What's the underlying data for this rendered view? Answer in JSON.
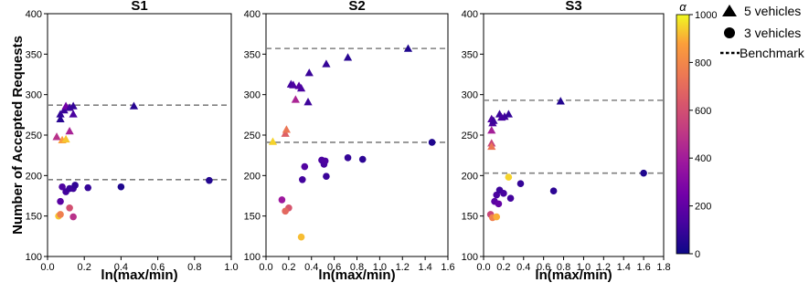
{
  "figure": {
    "ylabel": "Number of Accepted Requests",
    "legend": {
      "items": [
        {
          "marker": "triangle",
          "label": "5 vehicles"
        },
        {
          "marker": "circle",
          "label": "3 vehicles"
        },
        {
          "marker": "dashed-line",
          "label": "Benchmark"
        }
      ],
      "placement": "right"
    },
    "colorbar": {
      "label": "α",
      "colormap": "plasma",
      "min": 0,
      "max": 1000,
      "ticks": [
        "0",
        "200",
        "400",
        "600",
        "800",
        "1000"
      ]
    },
    "colors": {
      "benchmark_line": "#808080",
      "plasma_low": "#0d0887",
      "plasma_mid": "#cc4778",
      "plasma_high": "#f0f921"
    }
  },
  "chart_data": [
    {
      "type": "scatter",
      "title": "S1",
      "xlabel": "ln(max/min)",
      "xlim": [
        0.0,
        1.0
      ],
      "ylim": [
        100,
        400
      ],
      "xticks": [
        "0.0",
        "0.2",
        "0.4",
        "0.6",
        "0.8",
        "1.0"
      ],
      "yticks": [
        "100",
        "150",
        "200",
        "250",
        "300",
        "350",
        "400"
      ],
      "grid": false,
      "benchmarks": [
        287,
        195
      ],
      "series": [
        {
          "name": "5 vehicles",
          "marker": "triangle",
          "points": [
            {
              "x": 0.07,
              "y": 270,
              "alpha": 60
            },
            {
              "x": 0.07,
              "y": 276,
              "alpha": 80
            },
            {
              "x": 0.09,
              "y": 281,
              "alpha": 100
            },
            {
              "x": 0.1,
              "y": 286,
              "alpha": 250
            },
            {
              "x": 0.12,
              "y": 284,
              "alpha": 120
            },
            {
              "x": 0.14,
              "y": 286,
              "alpha": 90
            },
            {
              "x": 0.14,
              "y": 276,
              "alpha": 140
            },
            {
              "x": 0.47,
              "y": 286,
              "alpha": 60
            },
            {
              "x": 0.05,
              "y": 248,
              "alpha": 480
            },
            {
              "x": 0.12,
              "y": 255,
              "alpha": 420
            },
            {
              "x": 0.08,
              "y": 244,
              "alpha": 870
            },
            {
              "x": 0.1,
              "y": 245,
              "alpha": 930
            }
          ]
        },
        {
          "name": "3 vehicles",
          "marker": "circle",
          "points": [
            {
              "x": 0.07,
              "y": 168,
              "alpha": 180
            },
            {
              "x": 0.08,
              "y": 186,
              "alpha": 150
            },
            {
              "x": 0.1,
              "y": 180,
              "alpha": 120
            },
            {
              "x": 0.12,
              "y": 184,
              "alpha": 100
            },
            {
              "x": 0.14,
              "y": 184,
              "alpha": 110
            },
            {
              "x": 0.15,
              "y": 188,
              "alpha": 80
            },
            {
              "x": 0.22,
              "y": 185,
              "alpha": 90
            },
            {
              "x": 0.4,
              "y": 186,
              "alpha": 40
            },
            {
              "x": 0.88,
              "y": 194,
              "alpha": 50
            },
            {
              "x": 0.12,
              "y": 160,
              "alpha": 600
            },
            {
              "x": 0.14,
              "y": 149,
              "alpha": 480
            },
            {
              "x": 0.06,
              "y": 150,
              "alpha": 930
            },
            {
              "x": 0.07,
              "y": 152,
              "alpha": 770
            }
          ]
        }
      ]
    },
    {
      "type": "scatter",
      "title": "S2",
      "xlabel": "ln(max/min)",
      "xlim": [
        0.0,
        1.6
      ],
      "ylim": [
        100,
        400
      ],
      "xticks": [
        "0.0",
        "0.2",
        "0.4",
        "0.6",
        "0.8",
        "1.0",
        "1.2",
        "1.4",
        "1.6"
      ],
      "yticks": [
        "100",
        "150",
        "200",
        "250",
        "300",
        "350",
        "400"
      ],
      "grid": false,
      "benchmarks": [
        357,
        241
      ],
      "series": [
        {
          "name": "5 vehicles",
          "marker": "triangle",
          "points": [
            {
              "x": 0.22,
              "y": 313,
              "alpha": 120
            },
            {
              "x": 0.24,
              "y": 312,
              "alpha": 150
            },
            {
              "x": 0.29,
              "y": 311,
              "alpha": 170
            },
            {
              "x": 0.31,
              "y": 308,
              "alpha": 140
            },
            {
              "x": 0.37,
              "y": 291,
              "alpha": 110
            },
            {
              "x": 0.38,
              "y": 327,
              "alpha": 100
            },
            {
              "x": 0.53,
              "y": 338,
              "alpha": 90
            },
            {
              "x": 0.72,
              "y": 346,
              "alpha": 60
            },
            {
              "x": 1.25,
              "y": 357,
              "alpha": 40
            },
            {
              "x": 0.26,
              "y": 294,
              "alpha": 430
            },
            {
              "x": 0.17,
              "y": 252,
              "alpha": 660
            },
            {
              "x": 0.18,
              "y": 257,
              "alpha": 740
            },
            {
              "x": 0.06,
              "y": 242,
              "alpha": 950
            }
          ]
        },
        {
          "name": "3 vehicles",
          "marker": "circle",
          "points": [
            {
              "x": 0.34,
              "y": 211,
              "alpha": 160
            },
            {
              "x": 0.32,
              "y": 195,
              "alpha": 120
            },
            {
              "x": 0.49,
              "y": 219,
              "alpha": 140
            },
            {
              "x": 0.51,
              "y": 214,
              "alpha": 130
            },
            {
              "x": 0.52,
              "y": 218,
              "alpha": 150
            },
            {
              "x": 0.53,
              "y": 199,
              "alpha": 100
            },
            {
              "x": 0.72,
              "y": 222,
              "alpha": 90
            },
            {
              "x": 0.85,
              "y": 220,
              "alpha": 70
            },
            {
              "x": 1.46,
              "y": 241,
              "alpha": 40
            },
            {
              "x": 0.14,
              "y": 170,
              "alpha": 380
            },
            {
              "x": 0.2,
              "y": 160,
              "alpha": 620
            },
            {
              "x": 0.17,
              "y": 156,
              "alpha": 690
            },
            {
              "x": 0.31,
              "y": 124,
              "alpha": 920
            }
          ]
        }
      ]
    },
    {
      "type": "scatter",
      "title": "S3",
      "xlabel": "ln(max/min)",
      "xlim": [
        0.0,
        1.8
      ],
      "ylim": [
        100,
        400
      ],
      "xticks": [
        "0.0",
        "0.2",
        "0.4",
        "0.6",
        "0.8",
        "1.0",
        "1.2",
        "1.4",
        "1.6",
        "1.8"
      ],
      "yticks": [
        "100",
        "150",
        "200",
        "250",
        "300",
        "350",
        "400"
      ],
      "grid": false,
      "benchmarks": [
        293,
        203
      ],
      "series": [
        {
          "name": "5 vehicles",
          "marker": "triangle",
          "points": [
            {
              "x": 0.08,
              "y": 270,
              "alpha": 150
            },
            {
              "x": 0.09,
              "y": 265,
              "alpha": 140
            },
            {
              "x": 0.1,
              "y": 268,
              "alpha": 110
            },
            {
              "x": 0.16,
              "y": 276,
              "alpha": 100
            },
            {
              "x": 0.18,
              "y": 272,
              "alpha": 130
            },
            {
              "x": 0.21,
              "y": 273,
              "alpha": 120
            },
            {
              "x": 0.25,
              "y": 276,
              "alpha": 90
            },
            {
              "x": 0.77,
              "y": 292,
              "alpha": 50
            },
            {
              "x": 0.08,
              "y": 256,
              "alpha": 410
            },
            {
              "x": 0.08,
              "y": 240,
              "alpha": 560
            },
            {
              "x": 0.08,
              "y": 236,
              "alpha": 740
            }
          ]
        },
        {
          "name": "3 vehicles",
          "marker": "circle",
          "points": [
            {
              "x": 0.11,
              "y": 168,
              "alpha": 180
            },
            {
              "x": 0.13,
              "y": 176,
              "alpha": 140
            },
            {
              "x": 0.15,
              "y": 165,
              "alpha": 210
            },
            {
              "x": 0.16,
              "y": 182,
              "alpha": 110
            },
            {
              "x": 0.2,
              "y": 178,
              "alpha": 130
            },
            {
              "x": 0.27,
              "y": 172,
              "alpha": 120
            },
            {
              "x": 0.37,
              "y": 190,
              "alpha": 90
            },
            {
              "x": 0.7,
              "y": 181,
              "alpha": 70
            },
            {
              "x": 1.6,
              "y": 203,
              "alpha": 40
            },
            {
              "x": 0.07,
              "y": 152,
              "alpha": 560
            },
            {
              "x": 0.09,
              "y": 148,
              "alpha": 780
            },
            {
              "x": 0.13,
              "y": 149,
              "alpha": 900
            },
            {
              "x": 0.25,
              "y": 198,
              "alpha": 950
            }
          ]
        }
      ]
    }
  ]
}
